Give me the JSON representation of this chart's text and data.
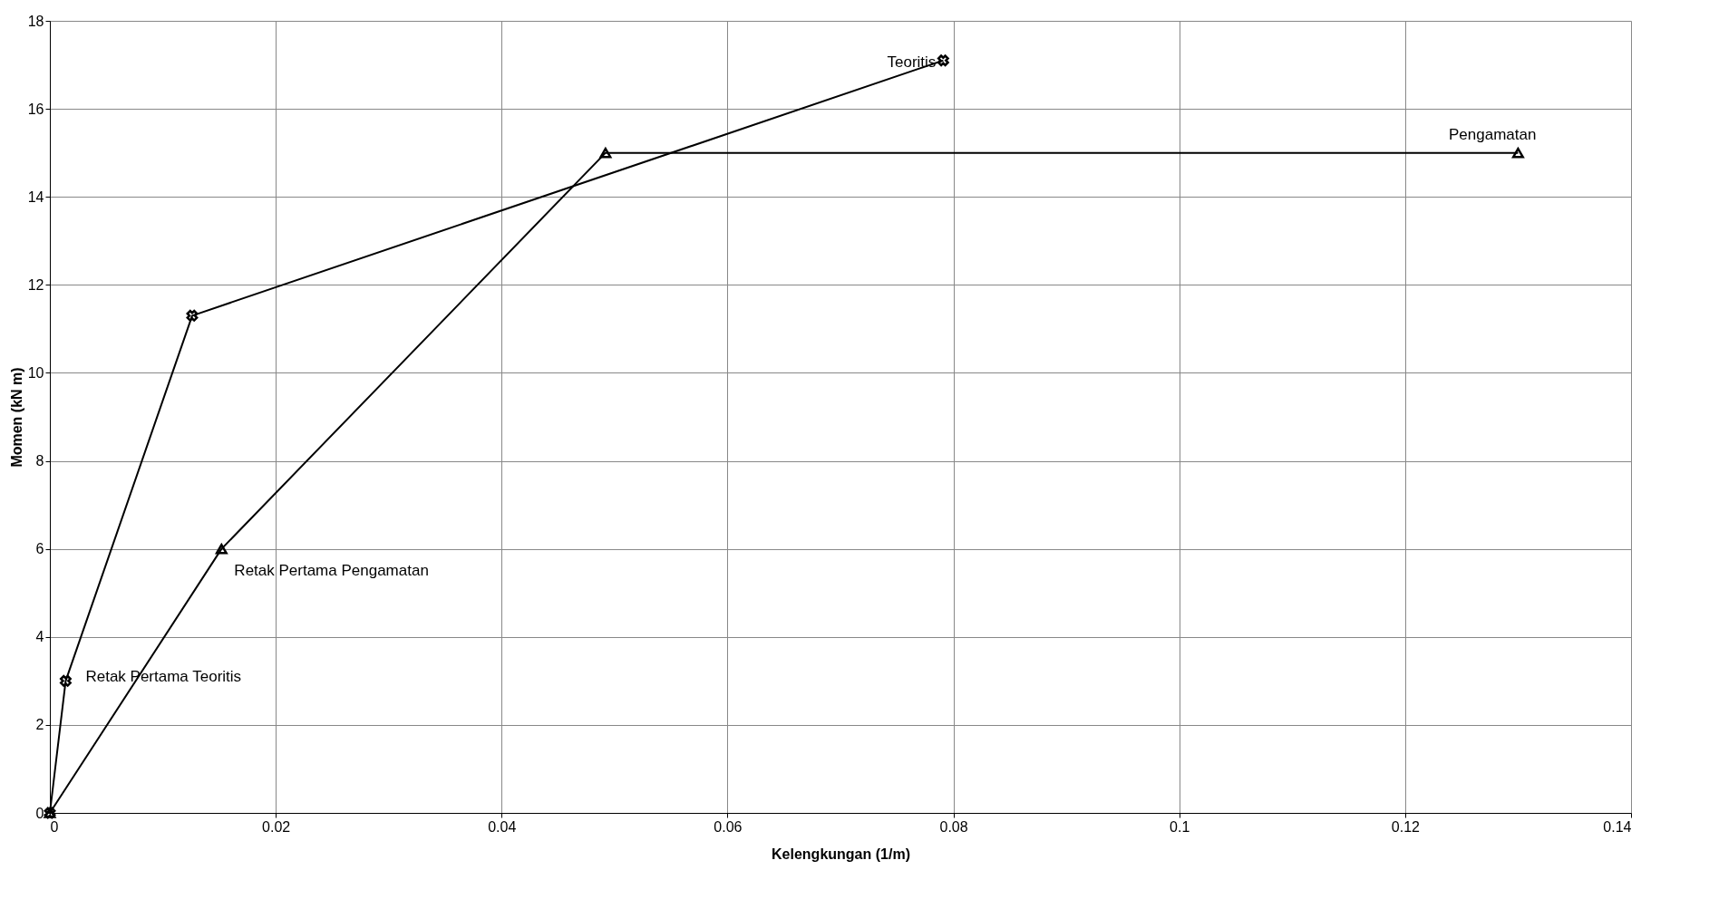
{
  "chart_data": {
    "type": "line",
    "xlabel": "Kelengkungan (1/m)",
    "ylabel": "Momen (kN m)",
    "xlim": [
      0,
      0.14
    ],
    "xticks": [
      0,
      0.02,
      0.04,
      0.06,
      0.08,
      0.1,
      0.12,
      0.14
    ],
    "ylim": [
      0,
      18
    ],
    "yticks": [
      0,
      2,
      4,
      6,
      8,
      10,
      12,
      14,
      16,
      18
    ],
    "grid": true,
    "legend": false,
    "line_style": "solid",
    "series": [
      {
        "name": "Teoritis",
        "color": "#000000",
        "marker": "cross",
        "x": [
          0,
          0.0014,
          0.0126,
          0.0791
        ],
        "values": [
          0,
          3,
          11.3,
          17.1
        ]
      },
      {
        "name": "Pengamatan",
        "color": "#000000",
        "marker": "triangle",
        "x": [
          0,
          0.0152,
          0.0492,
          0.13
        ],
        "values": [
          0,
          6,
          15,
          15
        ]
      }
    ],
    "annotations": [
      {
        "text": "Retak Pertama Teoritis",
        "x": 0.0014,
        "y": 3
      },
      {
        "text": "Retak Pertama Pengamatan",
        "x": 0.0152,
        "y": 6
      }
    ]
  }
}
